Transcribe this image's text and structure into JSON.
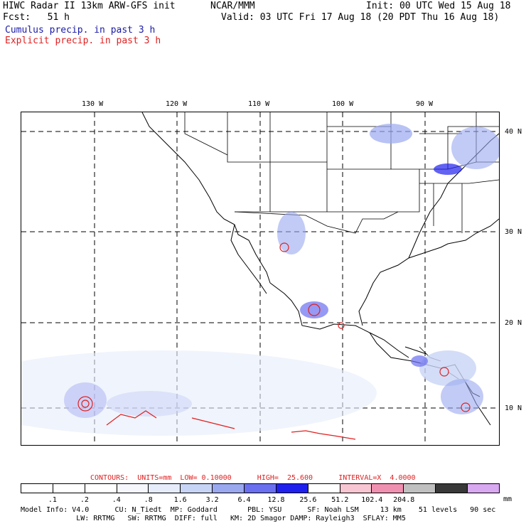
{
  "header": {
    "title_line": "HIWC Radar II 13km ARW-GFS init",
    "org": "NCAR/MMM",
    "init": "Init: 00 UTC Wed 15 Aug 18",
    "fcst": "Fcst:   51 h",
    "valid": "Valid: 03 UTC Fri 17 Aug 18 (20 PDT Thu 16 Aug 18)",
    "cumulus": "Cumulus precip. in past 3 h",
    "explicit": "Explicit precip. in past 3 h"
  },
  "map": {
    "lon_labels": [
      "130 W",
      "120 W",
      "110 W",
      "100 W",
      "90 W"
    ],
    "lat_labels": [
      "40 N",
      "30 N",
      "20 N",
      "10 N"
    ]
  },
  "contours": "CONTOURS:  UNITS=mm  LOW= 0.10000      HIGH=  25.600      INTERVAL=X  4.0000",
  "legend": {
    "colors": [
      "#ffffff",
      "#ffffff",
      "#ffffff",
      "#f5f7fd",
      "#e6ecfa",
      "#c8d4f5",
      "#9aa8f0",
      "#6a6ff0",
      "#2020ee",
      "#ffffff",
      "#f8c6d2",
      "#f090b0",
      "#c0c0c0",
      "#383838",
      "#d8a8f0"
    ],
    "ticks": [
      ".1",
      ".2",
      ".4",
      ".8",
      "1.6",
      "3.2",
      "6.4",
      "12.8",
      "25.6",
      "51.2",
      "102.4",
      "204.8"
    ],
    "unit": "mm"
  },
  "model_info": {
    "line1": "Model Info: V4.0      CU: N_Tiedt  MP: Goddard       PBL: YSU      SF: Noah LSM     13 km    51 levels   90 sec",
    "line2": "             LW: RRTMG   SW: RRTMG  DIFF: full   KM: 2D Smagor DAMP: Rayleigh3  SFLAY: MM5"
  }
}
